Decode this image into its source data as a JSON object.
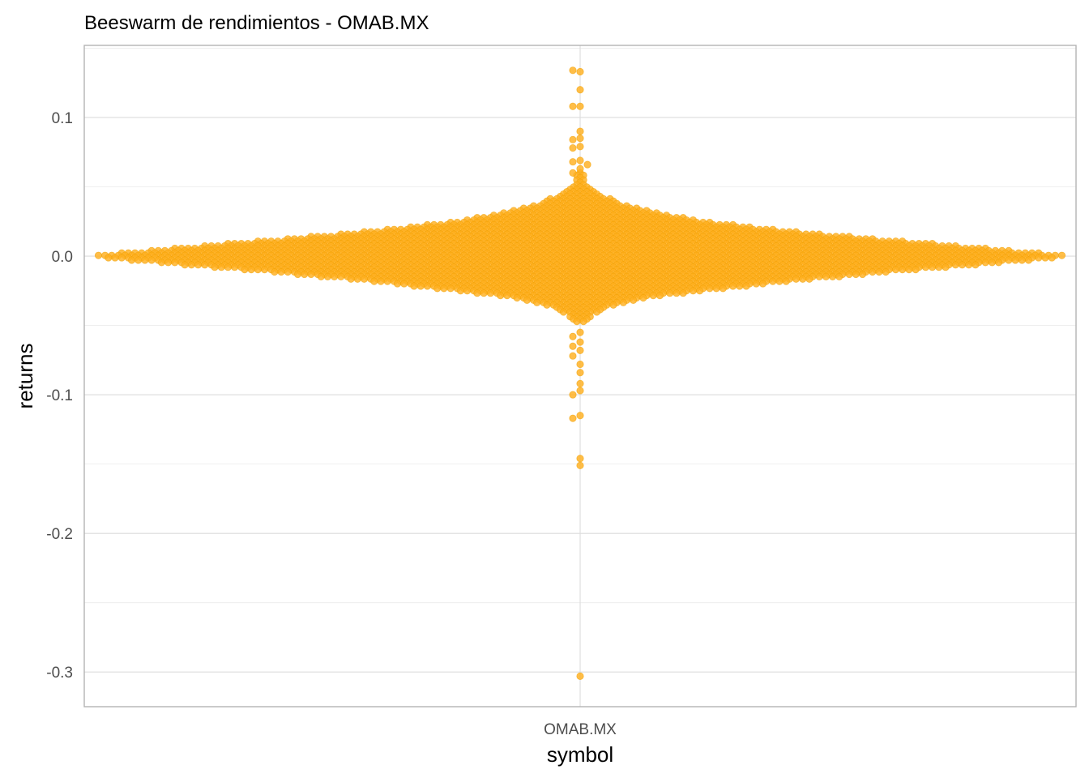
{
  "chart_data": {
    "type": "scatter",
    "subtype": "beeswarm",
    "title": "Beeswarm de rendimientos - OMAB.MX",
    "xlabel": "symbol",
    "ylabel": "returns",
    "categories": [
      "OMAB.MX"
    ],
    "ylim": [
      -0.325,
      0.152
    ],
    "y_ticks": [
      0.1,
      0.0,
      -0.1,
      -0.2,
      -0.3
    ],
    "y_tick_labels": [
      "0.1",
      "0.0",
      "-0.1",
      "-0.2",
      "-0.3"
    ],
    "grid": true,
    "legend": "none",
    "point_color": "#ffb020",
    "point_stroke": "#f0a000",
    "series": [
      {
        "category": "OMAB.MX",
        "outliers": [
          0.133,
          0.134,
          0.12,
          0.108,
          0.108,
          0.09,
          0.085,
          0.084,
          0.079,
          0.078,
          0.069,
          0.068,
          0.066,
          0.063,
          0.06,
          -0.055,
          -0.058,
          -0.062,
          -0.065,
          -0.068,
          -0.072,
          -0.078,
          -0.084,
          -0.092,
          -0.097,
          -0.1,
          -0.115,
          -0.117,
          -0.146,
          -0.151,
          -0.303
        ],
        "core_profile": [
          {
            "y": 0.06,
            "n": 3
          },
          {
            "y": 0.054,
            "n": 6
          },
          {
            "y": 0.048,
            "n": 12
          },
          {
            "y": 0.042,
            "n": 30
          },
          {
            "y": 0.036,
            "n": 55
          },
          {
            "y": 0.03,
            "n": 90
          },
          {
            "y": 0.024,
            "n": 150
          },
          {
            "y": 0.018,
            "n": 230
          },
          {
            "y": 0.012,
            "n": 330
          },
          {
            "y": 0.006,
            "n": 440
          },
          {
            "y": 0.0,
            "n": 540
          },
          {
            "y": -0.006,
            "n": 440
          },
          {
            "y": -0.012,
            "n": 330
          },
          {
            "y": -0.018,
            "n": 230
          },
          {
            "y": -0.024,
            "n": 150
          },
          {
            "y": -0.03,
            "n": 70
          },
          {
            "y": -0.036,
            "n": 35
          },
          {
            "y": -0.042,
            "n": 14
          },
          {
            "y": -0.048,
            "n": 6
          }
        ]
      }
    ]
  }
}
